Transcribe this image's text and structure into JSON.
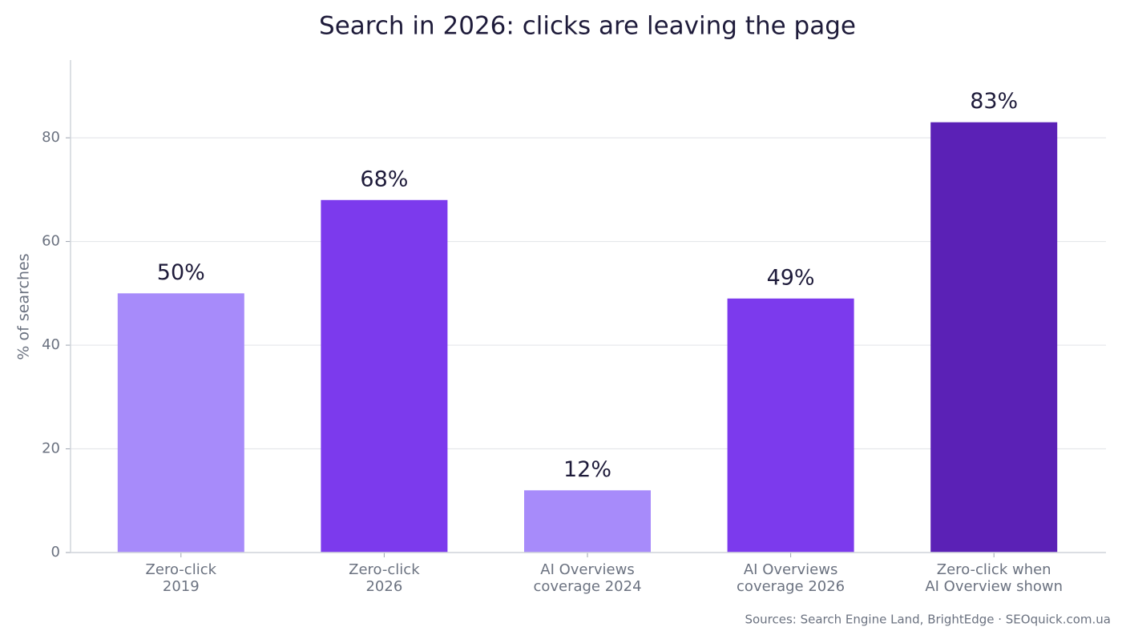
{
  "chart_data": {
    "type": "bar",
    "title": "Search in 2026: clicks are leaving the page",
    "y_label": "% of searches",
    "categories": [
      "Zero-click\n2019",
      "Zero-click\n2026",
      "AI Overviews\ncoverage 2024",
      "AI Overviews\ncoverage 2026",
      "Zero-click when\nAI Overview shown"
    ],
    "values": [
      50,
      68,
      12,
      49,
      83
    ],
    "value_labels": [
      "50%",
      "68%",
      "12%",
      "49%",
      "83%"
    ],
    "colors": [
      "#a78bfa",
      "#7c3aed",
      "#a78bfa",
      "#7c3aed",
      "#5b21b6"
    ],
    "ylim": [
      0,
      95
    ],
    "yticks": [
      0,
      20,
      40,
      60,
      80
    ],
    "grid": true,
    "source": "Sources: Search Engine Land, BrightEdge  ·  SEOquick.com.ua"
  }
}
